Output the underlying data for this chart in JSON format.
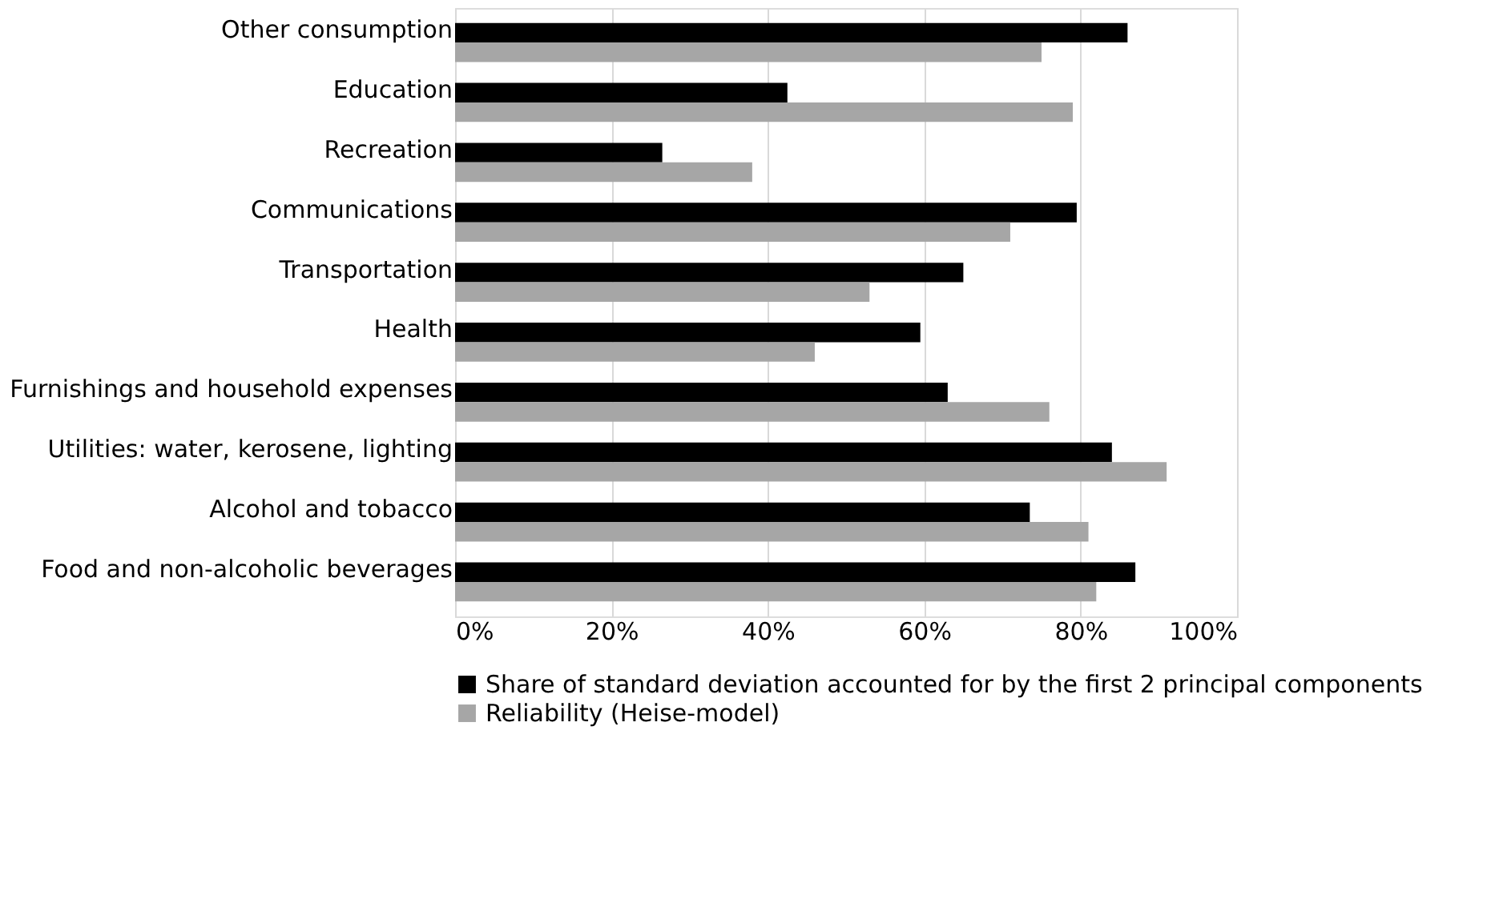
{
  "chart_data": {
    "type": "bar",
    "orientation": "horizontal",
    "categories": [
      "Other consumption",
      "Education",
      "Recreation",
      "Communications",
      "Transportation",
      "Health",
      "Furnishings and household expenses",
      "Utilities: water, kerosene, lighting",
      "Alcohol and tobacco",
      "Food and non-alcoholic beverages"
    ],
    "series": [
      {
        "name": "Share of standard deviation accounted for by the first 2 principal components",
        "color": "#000000",
        "values": [
          86,
          42.5,
          26.5,
          79.5,
          65,
          59.5,
          63,
          84,
          73.5,
          87
        ]
      },
      {
        "name": "Reliability (Heise-model)",
        "color": "#a6a6a6",
        "values": [
          75,
          79,
          38,
          71,
          53,
          46,
          76,
          91,
          81,
          82
        ]
      }
    ],
    "xlim": [
      0,
      100
    ],
    "xticks": [
      {
        "value": 0,
        "label": "0%"
      },
      {
        "value": 20,
        "label": "20%"
      },
      {
        "value": 40,
        "label": "40%"
      },
      {
        "value": 60,
        "label": "60%"
      },
      {
        "value": 80,
        "label": "80%"
      },
      {
        "value": 100,
        "label": "100%"
      }
    ],
    "grid": "x",
    "legend": "bottom"
  }
}
